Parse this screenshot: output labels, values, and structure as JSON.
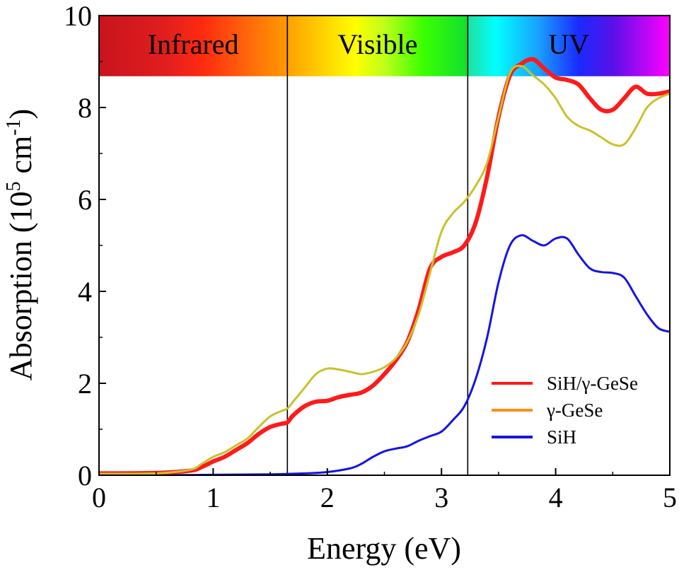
{
  "chart_data": {
    "type": "line",
    "xlabel": "Energy (eV)",
    "ylabel_parts": [
      "Absorption (10",
      "5",
      " cm",
      "-1",
      ")"
    ],
    "xlim": [
      0,
      5
    ],
    "ylim": [
      0,
      10
    ],
    "xticks": [
      "0",
      "1",
      "2",
      "3",
      "4",
      "5"
    ],
    "yticks": [
      "0",
      "2",
      "4",
      "6",
      "8",
      "10"
    ],
    "grid": false,
    "legend_position": "lower-right",
    "regions": [
      {
        "label": "Infrared",
        "from": 0,
        "to": 1.65
      },
      {
        "label": "Visible",
        "from": 1.65,
        "to": 3.23
      },
      {
        "label": "UV",
        "from": 3.23,
        "to": 5
      }
    ],
    "series": [
      {
        "name": "SiH/γ-GeSe",
        "color": "#ff1a1a",
        "legend_color": "#ff1a1a",
        "x": [
          0,
          0.5,
          0.8,
          0.9,
          1.0,
          1.1,
          1.2,
          1.3,
          1.4,
          1.5,
          1.6,
          1.65,
          1.7,
          1.8,
          1.9,
          2.0,
          2.1,
          2.2,
          2.3,
          2.4,
          2.5,
          2.6,
          2.7,
          2.8,
          2.9,
          3.0,
          3.1,
          3.2,
          3.3,
          3.4,
          3.5,
          3.6,
          3.7,
          3.8,
          3.9,
          4.0,
          4.1,
          4.2,
          4.3,
          4.4,
          4.5,
          4.6,
          4.7,
          4.8,
          4.9,
          5.0
        ],
        "y": [
          0.04,
          0.05,
          0.1,
          0.18,
          0.3,
          0.4,
          0.55,
          0.7,
          0.9,
          1.05,
          1.12,
          1.15,
          1.3,
          1.5,
          1.6,
          1.62,
          1.7,
          1.75,
          1.8,
          1.95,
          2.2,
          2.5,
          2.9,
          3.6,
          4.5,
          4.75,
          4.85,
          5.0,
          5.5,
          6.5,
          7.8,
          8.7,
          8.95,
          9.05,
          8.85,
          8.65,
          8.6,
          8.5,
          8.2,
          7.95,
          7.95,
          8.2,
          8.45,
          8.3,
          8.3,
          8.35
        ]
      },
      {
        "name": "γ-GeSe",
        "color": "#c9c22a",
        "legend_color": "#ff8c1a",
        "x": [
          0,
          0.5,
          0.8,
          0.9,
          1.0,
          1.1,
          1.2,
          1.3,
          1.4,
          1.5,
          1.6,
          1.65,
          1.7,
          1.8,
          1.9,
          2.0,
          2.1,
          2.2,
          2.3,
          2.4,
          2.5,
          2.6,
          2.7,
          2.8,
          2.9,
          3.0,
          3.1,
          3.2,
          3.3,
          3.4,
          3.5,
          3.6,
          3.7,
          3.8,
          3.9,
          4.0,
          4.1,
          4.2,
          4.3,
          4.4,
          4.5,
          4.6,
          4.7,
          4.8,
          4.9,
          5.0
        ],
        "y": [
          0.03,
          0.04,
          0.12,
          0.25,
          0.4,
          0.5,
          0.65,
          0.8,
          1.05,
          1.28,
          1.4,
          1.45,
          1.6,
          1.9,
          2.2,
          2.32,
          2.3,
          2.25,
          2.2,
          2.25,
          2.35,
          2.55,
          2.9,
          3.5,
          4.4,
          5.3,
          5.7,
          5.95,
          6.3,
          6.8,
          7.8,
          8.75,
          8.9,
          8.7,
          8.5,
          8.2,
          7.8,
          7.6,
          7.5,
          7.35,
          7.2,
          7.2,
          7.55,
          8.0,
          8.2,
          8.3
        ]
      },
      {
        "name": "SiH",
        "color": "#1414e6",
        "legend_color": "#1414e6",
        "x": [
          0,
          0.5,
          1.0,
          1.5,
          1.8,
          2.0,
          2.2,
          2.3,
          2.4,
          2.5,
          2.6,
          2.7,
          2.8,
          2.9,
          3.0,
          3.1,
          3.2,
          3.3,
          3.4,
          3.5,
          3.6,
          3.7,
          3.8,
          3.9,
          4.0,
          4.1,
          4.2,
          4.3,
          4.4,
          4.5,
          4.6,
          4.7,
          4.8,
          4.9,
          5.0
        ],
        "y": [
          0.0,
          0.0,
          0.01,
          0.02,
          0.04,
          0.07,
          0.15,
          0.25,
          0.4,
          0.52,
          0.58,
          0.63,
          0.75,
          0.85,
          0.95,
          1.2,
          1.5,
          2.1,
          3.0,
          4.2,
          5.0,
          5.22,
          5.1,
          5.0,
          5.15,
          5.15,
          4.8,
          4.5,
          4.42,
          4.4,
          4.3,
          3.9,
          3.5,
          3.2,
          3.12
        ]
      }
    ]
  }
}
